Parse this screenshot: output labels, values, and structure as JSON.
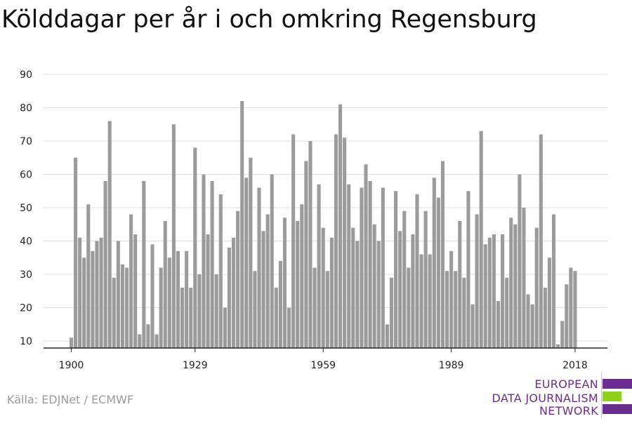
{
  "title": "Kölddagar per år i och omkring Regensburg",
  "source": "Källa: EDJNet / ECMWF",
  "logo": {
    "lines": [
      "EUROPEAN",
      "DATA JOURNALISM",
      "NETWORK"
    ],
    "colors": [
      "#6a2c8e",
      "#8fd11f",
      "#6a2c8e"
    ]
  },
  "colors": {
    "bar": "#9b9b9b",
    "grid": "#dddddd",
    "axis": "#222222",
    "text": "#222222"
  },
  "chart_data": {
    "type": "bar",
    "title": "Kölddagar per år i och omkring Regensburg",
    "xlabel": "",
    "ylabel": "",
    "x_start": 1900,
    "x_ticks": [
      1900,
      1929,
      1959,
      1989,
      2018
    ],
    "y_ticks": [
      10,
      20,
      30,
      40,
      50,
      60,
      70,
      80,
      90
    ],
    "ylim": [
      7.5,
      90
    ],
    "grid": true,
    "legend": "none",
    "values": [
      11,
      65,
      41,
      35,
      51,
      37,
      40,
      41,
      58,
      76,
      29,
      40,
      33,
      32,
      48,
      42,
      12,
      58,
      15,
      39,
      12,
      32,
      46,
      35,
      75,
      37,
      26,
      37,
      26,
      68,
      30,
      60,
      42,
      58,
      30,
      54,
      20,
      38,
      41,
      49,
      82,
      59,
      65,
      31,
      56,
      43,
      48,
      60,
      26,
      34,
      47,
      20,
      72,
      46,
      51,
      64,
      70,
      32,
      57,
      44,
      31,
      41,
      72,
      81,
      71,
      57,
      44,
      40,
      56,
      63,
      58,
      45,
      40,
      56,
      15,
      29,
      55,
      43,
      49,
      32,
      42,
      54,
      36,
      49,
      36,
      59,
      53,
      64,
      31,
      37,
      31,
      46,
      29,
      55,
      21,
      48,
      73,
      39,
      41,
      42,
      22,
      42,
      29,
      47,
      45,
      60,
      50,
      24,
      21,
      44,
      72,
      26,
      35,
      48,
      9,
      16,
      27,
      32,
      31
    ]
  }
}
